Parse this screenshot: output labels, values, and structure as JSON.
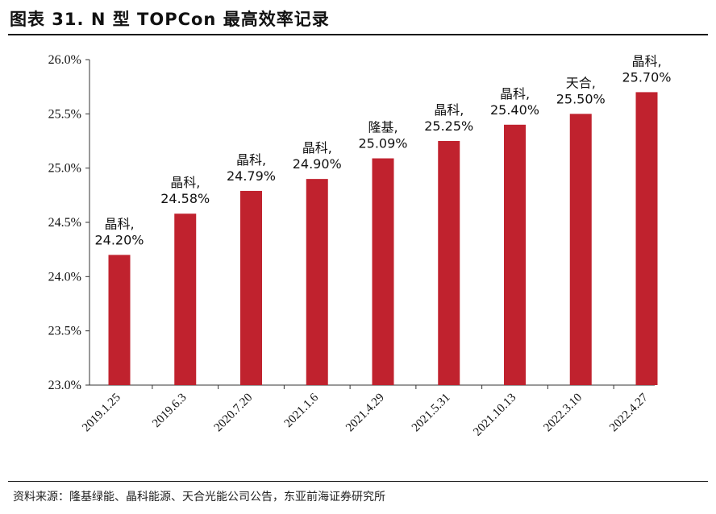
{
  "header": {
    "title": "图表 31. N 型 TOPCon 最高效率记录"
  },
  "footer": {
    "source": "资料来源：隆基绿能、晶科能源、天合光能公司公告，东亚前海证券研究所"
  },
  "colors": {
    "bar": "#c0222e"
  },
  "chart_data": {
    "type": "bar",
    "title": "N 型 TOPCon 最高效率记录",
    "xlabel": "",
    "ylabel": "",
    "ylim": [
      23.0,
      26.0
    ],
    "ytick_step": 0.5,
    "y_format": "percent_1dp",
    "grid": false,
    "legend": "none",
    "categories": [
      "2019.1.25",
      "2019.6.3",
      "2020.7.20",
      "2021.1.6",
      "2021.4.29",
      "2021.5.31",
      "2021.10.13",
      "2022.3.10",
      "2022.4.27"
    ],
    "values": [
      24.2,
      24.58,
      24.79,
      24.9,
      25.09,
      25.25,
      25.4,
      25.5,
      25.7
    ],
    "bar_labels": [
      [
        "晶科,",
        "24.20%"
      ],
      [
        "晶科,",
        "24.58%"
      ],
      [
        "晶科,",
        "24.79%"
      ],
      [
        "晶科,",
        "24.90%"
      ],
      [
        "隆基,",
        "25.09%"
      ],
      [
        "晶科,",
        "25.25%"
      ],
      [
        "晶科,",
        "25.40%"
      ],
      [
        "天合,",
        "25.50%"
      ],
      [
        "晶科,",
        "25.70%"
      ]
    ]
  }
}
